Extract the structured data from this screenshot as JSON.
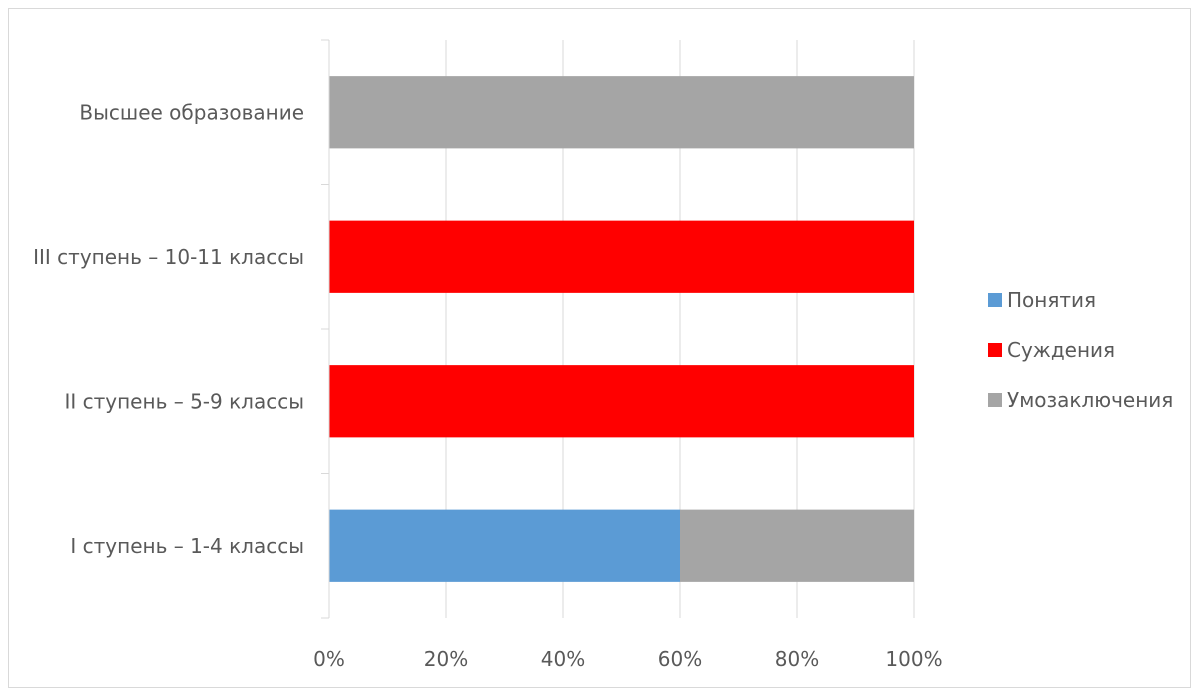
{
  "chart_data": {
    "type": "bar",
    "orientation": "horizontal",
    "stacked_percent": true,
    "categories": [
      "I ступень – 1-4 классы",
      "II ступень – 5-9 классы",
      "III ступень – 10-11 классы",
      "Высшее образование"
    ],
    "series": [
      {
        "name": "Понятия",
        "color": "#5b9bd5",
        "values": [
          60,
          0,
          0,
          0
        ]
      },
      {
        "name": "Суждения",
        "color": "#ff0000",
        "values": [
          0,
          100,
          100,
          0
        ]
      },
      {
        "name": "Умозаключения",
        "color": "#a5a5a5",
        "values": [
          40,
          0,
          0,
          100
        ]
      }
    ],
    "xlim": [
      0,
      100
    ],
    "xticks": [
      "0%",
      "20%",
      "40%",
      "60%",
      "80%",
      "100%"
    ],
    "grid": true,
    "legend_position": "right",
    "title": "",
    "xlabel": "",
    "ylabel": ""
  }
}
